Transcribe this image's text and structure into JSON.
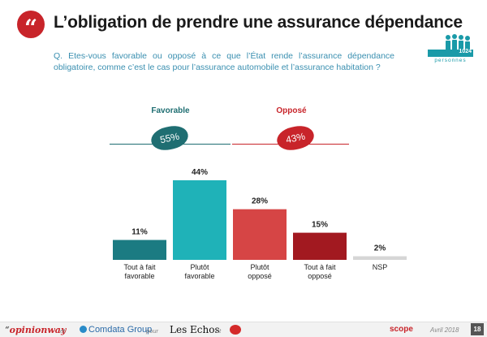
{
  "header": {
    "quote_glyph": "“",
    "title": "L’obligation de prendre une assurance dépendance",
    "question": "Q. Etes-vous favorable ou opposé à ce que l’État rende l’assurance dépendance obligatoire, comme c’est le cas pour l’assurance automobile et l’assurance habitation ?"
  },
  "sample": {
    "count": "1024",
    "label": "personnes"
  },
  "groups": {
    "favorable": {
      "label": "Favorable",
      "value": "55%",
      "color": "#1f6e72"
    },
    "oppose": {
      "label": "Opposé",
      "value": "43%",
      "color": "#c8242a"
    }
  },
  "chart_data": {
    "type": "bar",
    "categories": [
      "Tout à fait\nfavorable",
      "Plutôt\nfavorable",
      "Plutôt\nopposé",
      "Tout à fait\nopposé",
      "NSP"
    ],
    "values": [
      11,
      44,
      28,
      15,
      2
    ],
    "value_labels": [
      "11%",
      "44%",
      "28%",
      "15%",
      "2%"
    ],
    "colors": [
      "#1b7b82",
      "#1fb2b8",
      "#d64545",
      "#a21920",
      "#d6d6d6"
    ],
    "ylim": [
      0,
      44
    ],
    "grid": false,
    "legend": "none"
  },
  "footer": {
    "opinionway": "opinionway",
    "et1": "et",
    "comdata": "Comdata Group",
    "pour": "pour",
    "lesechos": "Les Echos",
    "et2": "et",
    "scope": "scope",
    "date": "Avril 2018",
    "page": "18"
  }
}
